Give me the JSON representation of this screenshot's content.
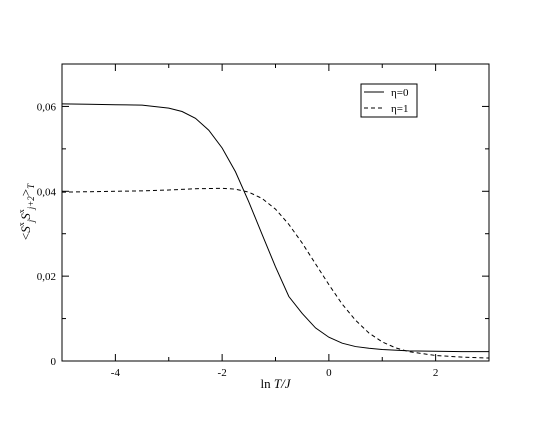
{
  "chart_data": {
    "type": "line",
    "xlabel": "ln T/J",
    "ylabel": "<S^x_j S^x_j+2>_T",
    "xlim": [
      -5,
      3
    ],
    "ylim": [
      0,
      0.07
    ],
    "xticks": [
      -4,
      -2,
      0,
      2
    ],
    "xtick_labels": [
      "-4",
      "-2",
      "0",
      "2"
    ],
    "yticks": [
      0,
      0.02,
      0.04,
      0.06
    ],
    "ytick_labels": [
      "0",
      "0,02",
      "0,04",
      "0,06"
    ],
    "grid": false,
    "legend_position": "top-right",
    "series": [
      {
        "name": "η=0",
        "style": "solid",
        "x": [
          -5,
          -4.5,
          -4,
          -3.5,
          -3,
          -2.75,
          -2.5,
          -2.25,
          -2,
          -1.75,
          -1.5,
          -1.25,
          -1,
          -0.75,
          -0.5,
          -0.25,
          0,
          0.25,
          0.5,
          0.75,
          1,
          1.5,
          2,
          2.5,
          3
        ],
        "y": [
          0.0606,
          0.0605,
          0.0604,
          0.0603,
          0.0596,
          0.0588,
          0.0572,
          0.0544,
          0.0502,
          0.0446,
          0.0375,
          0.0298,
          0.0222,
          0.0152,
          0.0112,
          0.0078,
          0.0056,
          0.0042,
          0.0034,
          0.003,
          0.0027,
          0.0024,
          0.0023,
          0.0022,
          0.0022
        ]
      },
      {
        "name": "η=1",
        "style": "dashed",
        "x": [
          -5,
          -4.5,
          -4,
          -3.5,
          -3,
          -2.5,
          -2,
          -1.75,
          -1.5,
          -1.25,
          -1,
          -0.75,
          -0.5,
          -0.25,
          0,
          0.25,
          0.5,
          0.75,
          1,
          1.25,
          1.5,
          2,
          2.5,
          3
        ],
        "y": [
          0.0398,
          0.0399,
          0.04,
          0.0401,
          0.0403,
          0.0406,
          0.0407,
          0.0405,
          0.0398,
          0.0383,
          0.0358,
          0.0322,
          0.0278,
          0.0229,
          0.018,
          0.0134,
          0.0096,
          0.0066,
          0.0045,
          0.0031,
          0.0022,
          0.0013,
          0.0009,
          0.0007
        ]
      }
    ]
  }
}
